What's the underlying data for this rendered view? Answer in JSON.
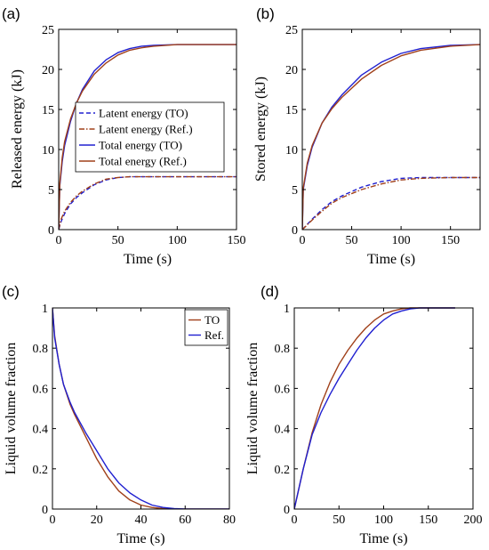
{
  "colors": {
    "blue": "#2020d0",
    "red": "#a0401a"
  },
  "chart_data": [
    {
      "panel": "(a)",
      "type": "line",
      "xlabel": "Time (s)",
      "ylabel": "Released energy (kJ)",
      "xlim": [
        0,
        150
      ],
      "ylim": [
        0,
        25
      ],
      "xticks": [
        0,
        50,
        100,
        150
      ],
      "yticks": [
        0,
        5,
        10,
        15,
        20,
        25
      ],
      "legend_position": "middle",
      "series": [
        {
          "name": "Latent energy (TO)",
          "color": "#2020d0",
          "style": "dashed",
          "x": [
            0,
            2,
            5,
            10,
            15,
            20,
            30,
            40,
            50,
            60,
            80,
            100,
            150
          ],
          "y": [
            0,
            1.0,
            2.0,
            3.2,
            4.0,
            4.6,
            5.6,
            6.2,
            6.5,
            6.6,
            6.6,
            6.6,
            6.6
          ]
        },
        {
          "name": "Latent energy (Ref.)",
          "color": "#a0401a",
          "style": "dashdot",
          "x": [
            0,
            2,
            5,
            10,
            15,
            20,
            30,
            40,
            50,
            60,
            80,
            100,
            150
          ],
          "y": [
            0,
            1.3,
            2.3,
            3.4,
            4.2,
            4.8,
            5.7,
            6.3,
            6.5,
            6.6,
            6.6,
            6.6,
            6.6
          ]
        },
        {
          "name": "Total energy (TO)",
          "color": "#2020d0",
          "style": "solid",
          "x": [
            0,
            1,
            3,
            5,
            10,
            15,
            20,
            30,
            40,
            50,
            60,
            70,
            80,
            100,
            120,
            150
          ],
          "y": [
            0,
            5.5,
            8.5,
            10.5,
            13.5,
            15.8,
            17.5,
            19.8,
            21.2,
            22.1,
            22.6,
            22.9,
            23.0,
            23.1,
            23.1,
            23.1
          ]
        },
        {
          "name": "Total energy (Ref.)",
          "color": "#a0401a",
          "style": "solid",
          "x": [
            0,
            1,
            3,
            5,
            10,
            15,
            20,
            30,
            40,
            50,
            60,
            70,
            80,
            100,
            120,
            150
          ],
          "y": [
            0,
            5.8,
            9.0,
            11.0,
            13.8,
            15.8,
            17.3,
            19.4,
            20.8,
            21.8,
            22.4,
            22.7,
            22.9,
            23.1,
            23.1,
            23.1
          ]
        }
      ]
    },
    {
      "panel": "(b)",
      "type": "line",
      "xlabel": "Time (s)",
      "ylabel": "Stored energy (kJ)",
      "xlim": [
        0,
        180
      ],
      "ylim": [
        0,
        25
      ],
      "xticks": [
        0,
        50,
        100,
        150
      ],
      "yticks": [
        0,
        5,
        10,
        15,
        20,
        25
      ],
      "series": [
        {
          "name": "Latent energy (TO)",
          "color": "#2020d0",
          "style": "dashed",
          "x": [
            0,
            10,
            20,
            30,
            40,
            60,
            80,
            100,
            120,
            150,
            180
          ],
          "y": [
            0,
            1.3,
            2.5,
            3.5,
            4.2,
            5.3,
            6.0,
            6.4,
            6.5,
            6.5,
            6.5
          ]
        },
        {
          "name": "Latent energy (Ref.)",
          "color": "#a0401a",
          "style": "dashdot",
          "x": [
            0,
            10,
            20,
            30,
            40,
            60,
            80,
            100,
            120,
            150,
            180
          ],
          "y": [
            0,
            1.2,
            2.3,
            3.3,
            4.0,
            5.0,
            5.7,
            6.2,
            6.4,
            6.5,
            6.5
          ]
        },
        {
          "name": "Total energy (TO)",
          "color": "#2020d0",
          "style": "solid",
          "x": [
            0,
            1,
            5,
            10,
            20,
            30,
            40,
            60,
            80,
            100,
            120,
            150,
            180
          ],
          "y": [
            0,
            5.0,
            8.0,
            10.3,
            13.3,
            15.3,
            16.8,
            19.3,
            20.9,
            22.0,
            22.6,
            23.0,
            23.1
          ]
        },
        {
          "name": "Total energy (Ref.)",
          "color": "#a0401a",
          "style": "solid",
          "x": [
            0,
            1,
            5,
            10,
            20,
            30,
            40,
            60,
            80,
            100,
            120,
            150,
            180
          ],
          "y": [
            0,
            5.2,
            8.3,
            10.5,
            13.3,
            15.1,
            16.5,
            18.8,
            20.5,
            21.7,
            22.4,
            22.9,
            23.1
          ]
        }
      ]
    },
    {
      "panel": "(c)",
      "type": "line",
      "xlabel": "Time (s)",
      "ylabel": "Liquid volume fraction",
      "xlim": [
        0,
        80
      ],
      "ylim": [
        0,
        1
      ],
      "xticks": [
        0,
        20,
        40,
        60,
        80
      ],
      "yticks": [
        0,
        0.2,
        0.4,
        0.6,
        0.8,
        1
      ],
      "legend_position": "top-right",
      "series": [
        {
          "name": "TO",
          "color": "#a0401a",
          "style": "solid",
          "x": [
            0,
            1,
            3,
            5,
            8,
            10,
            15,
            20,
            25,
            30,
            35,
            40,
            45,
            50,
            55,
            60,
            80
          ],
          "y": [
            1.0,
            0.86,
            0.72,
            0.62,
            0.52,
            0.47,
            0.36,
            0.25,
            0.16,
            0.09,
            0.045,
            0.02,
            0.008,
            0.002,
            0.0,
            0.0,
            0.0
          ]
        },
        {
          "name": "Ref.",
          "color": "#2020d0",
          "style": "solid",
          "x": [
            0,
            1,
            3,
            5,
            8,
            10,
            15,
            20,
            25,
            30,
            35,
            40,
            45,
            50,
            55,
            60,
            80
          ],
          "y": [
            1.0,
            0.85,
            0.72,
            0.62,
            0.53,
            0.48,
            0.38,
            0.29,
            0.2,
            0.13,
            0.08,
            0.045,
            0.02,
            0.008,
            0.002,
            0.0,
            0.0
          ]
        }
      ]
    },
    {
      "panel": "(d)",
      "type": "line",
      "xlabel": "Time (s)",
      "ylabel": "Liquid volume fraction",
      "xlim": [
        0,
        200
      ],
      "ylim": [
        0,
        1
      ],
      "xticks": [
        0,
        50,
        100,
        150,
        200
      ],
      "yticks": [
        0,
        0.2,
        0.4,
        0.6,
        0.8,
        1
      ],
      "series": [
        {
          "name": "TO",
          "color": "#a0401a",
          "style": "solid",
          "x": [
            0,
            10,
            20,
            30,
            40,
            50,
            60,
            70,
            80,
            90,
            100,
            110,
            120,
            130,
            140,
            150,
            160,
            180
          ],
          "y": [
            0,
            0.2,
            0.38,
            0.52,
            0.63,
            0.72,
            0.79,
            0.85,
            0.9,
            0.94,
            0.97,
            0.985,
            0.995,
            1.0,
            1.0,
            1.0,
            1.0,
            1.0
          ]
        },
        {
          "name": "Ref.",
          "color": "#2020d0",
          "style": "solid",
          "x": [
            0,
            10,
            20,
            30,
            40,
            50,
            60,
            70,
            80,
            90,
            100,
            110,
            120,
            130,
            140,
            150,
            160,
            180
          ],
          "y": [
            0,
            0.2,
            0.37,
            0.48,
            0.57,
            0.65,
            0.72,
            0.79,
            0.85,
            0.9,
            0.94,
            0.97,
            0.985,
            0.995,
            1.0,
            1.0,
            1.0,
            1.0
          ]
        }
      ]
    }
  ]
}
